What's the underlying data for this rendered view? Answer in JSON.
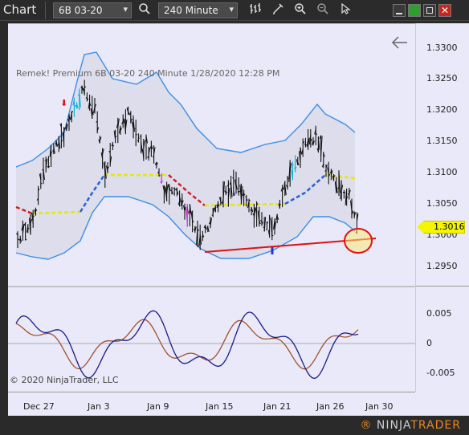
{
  "toolbar": {
    "title": "Chart",
    "instrument": "6B 03-20",
    "interval": "240 Minute",
    "icons": [
      "search-icon",
      "bar-type-icon",
      "drawing-pencil-icon",
      "zoom-in-icon",
      "zoom-out-icon",
      "pointer-icon"
    ],
    "window_buttons": [
      "minimize-icon",
      "maximize-green-icon",
      "restore-icon",
      "close-icon"
    ]
  },
  "chart_header": {
    "text": "Remek!  Premium  6B 03-20  240 Minute  1/28/2020 12:28 PM"
  },
  "copyright": "© 2020 NinjaTrader, LLC",
  "logo": {
    "prefix": "NINJA",
    "suffix": "TRADER",
    "mark": "®"
  },
  "price_axis": {
    "labels": [
      "1.3300",
      "1.3250",
      "1.3200",
      "1.3150",
      "1.3100",
      "1.3050",
      "1.3000",
      "1.2950"
    ],
    "current_price": "1.3016"
  },
  "oscillator_axis": {
    "labels": [
      "0.005",
      "0",
      "-0.005"
    ]
  },
  "time_axis": {
    "labels": [
      "Dec 27",
      "Jan 3",
      "Jan 9",
      "Jan 15",
      "Jan 21",
      "Jan 26",
      "Jan 30"
    ]
  },
  "colors": {
    "background": "#e9e9f9",
    "band": "#3b8fe8",
    "trendline": "#e01010",
    "price_tag": "#f5f500",
    "osc_fast": "#1a1a8c",
    "osc_slow": "#a0522d"
  }
}
